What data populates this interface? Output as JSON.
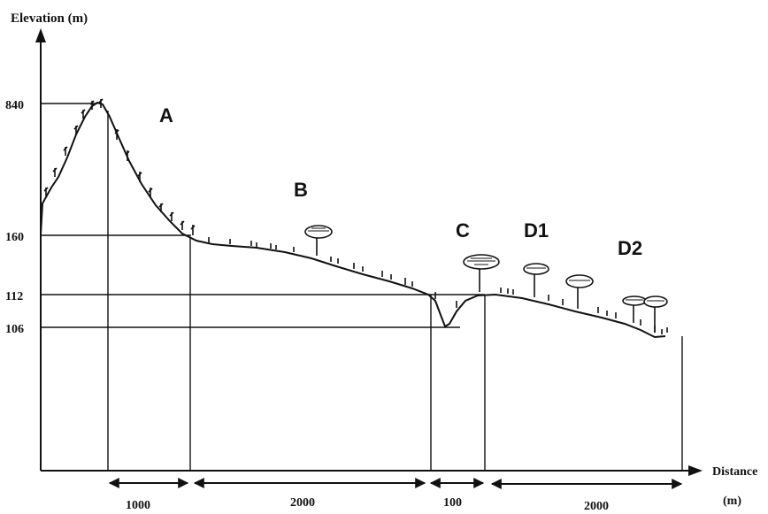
{
  "axes": {
    "y_label": "Elevation (m)",
    "x_label_line1": "Distance",
    "x_label_line2": "(m)"
  },
  "elevation_ticks": [
    "840",
    "160",
    "112",
    "106"
  ],
  "distance_segments": [
    "1000",
    "2000",
    "100",
    "2000"
  ],
  "zones": [
    "A",
    "B",
    "C",
    "D1",
    "D2"
  ],
  "colors": {
    "ink": "#111111",
    "background": "#ffffff"
  },
  "vegetation": {
    "shrubs": "shrub-icon",
    "trees": "tree-icon"
  }
}
